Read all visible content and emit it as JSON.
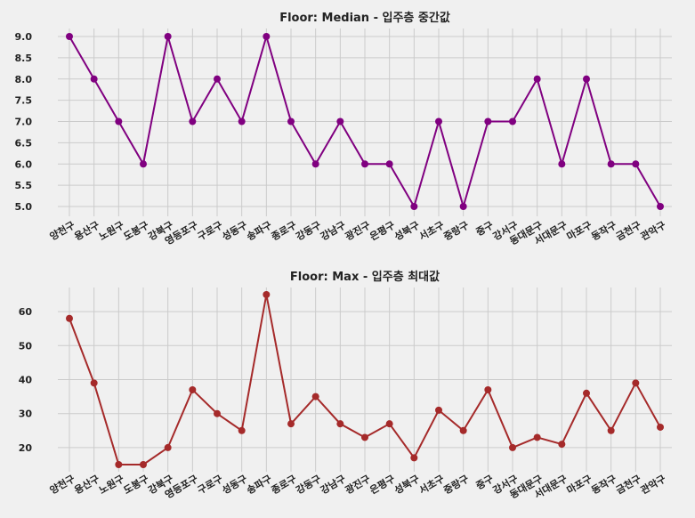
{
  "chart_data": [
    {
      "type": "line",
      "title": "Floor: Median - 입주층 중간값",
      "xlabel": "",
      "ylabel": "",
      "categories": [
        "양천구",
        "용산구",
        "노원구",
        "도봉구",
        "강북구",
        "영등포구",
        "구로구",
        "성동구",
        "송파구",
        "종로구",
        "강동구",
        "강남구",
        "광진구",
        "은평구",
        "성북구",
        "서초구",
        "중랑구",
        "중구",
        "강서구",
        "동대문구",
        "서대문구",
        "마포구",
        "동작구",
        "금천구",
        "관악구"
      ],
      "values": [
        9,
        8,
        7,
        6,
        9,
        7,
        8,
        7,
        9,
        7,
        6,
        7,
        6,
        6,
        5,
        7,
        5,
        7,
        7,
        8,
        6,
        8,
        6,
        6,
        5
      ],
      "yticks": [
        "9.0",
        "8.5",
        "8.0",
        "7.5",
        "7.0",
        "6.5",
        "6.0",
        "5.5",
        "5.0"
      ],
      "ylim": [
        5.0,
        9.0
      ],
      "grid": true,
      "color": "#800080"
    },
    {
      "type": "line",
      "title": "Floor: Max - 입주층 최대값",
      "xlabel": "",
      "ylabel": "",
      "categories": [
        "양천구",
        "용산구",
        "노원구",
        "도봉구",
        "강북구",
        "영등포구",
        "구로구",
        "성동구",
        "송파구",
        "종로구",
        "강동구",
        "강남구",
        "광진구",
        "은평구",
        "성북구",
        "서초구",
        "중랑구",
        "중구",
        "강서구",
        "동대문구",
        "서대문구",
        "마포구",
        "동작구",
        "금천구",
        "관악구"
      ],
      "values": [
        58,
        39,
        15,
        15,
        20,
        37,
        30,
        25,
        65,
        27,
        35,
        27,
        23,
        27,
        17,
        31,
        25,
        37,
        20,
        23,
        21,
        36,
        25,
        39,
        26
      ],
      "yticks": [
        "60",
        "50",
        "40",
        "30",
        "20"
      ],
      "ylim": [
        15,
        65
      ],
      "grid": true,
      "color": "#a52a2a"
    }
  ]
}
